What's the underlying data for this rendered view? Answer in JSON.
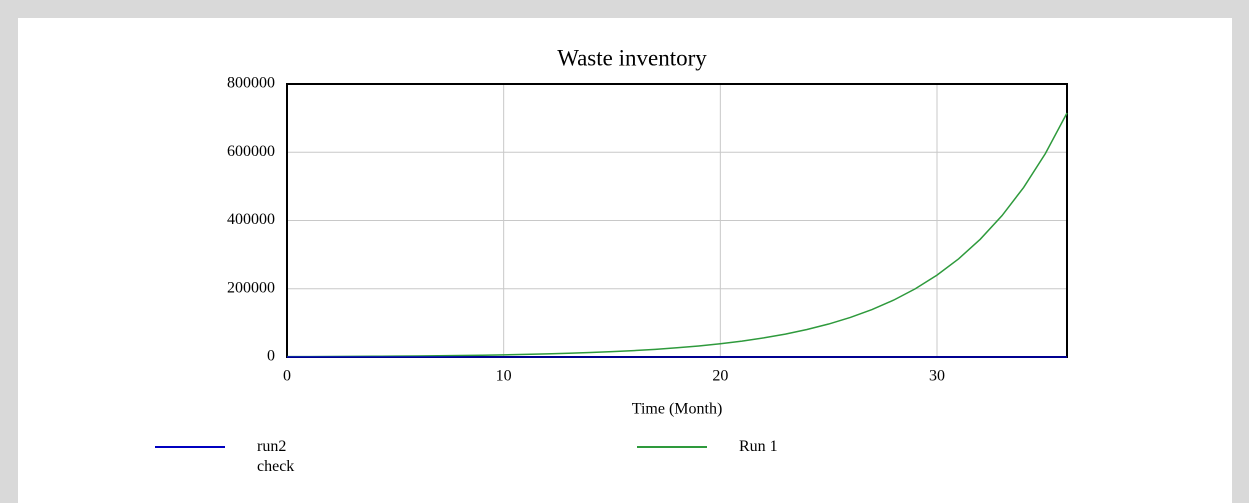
{
  "chart_data": {
    "type": "line",
    "title": "Waste inventory",
    "x_label": "Time (Month)",
    "x": [
      0,
      1,
      2,
      3,
      4,
      5,
      6,
      7,
      8,
      9,
      10,
      11,
      12,
      13,
      14,
      15,
      16,
      17,
      18,
      19,
      20,
      21,
      22,
      23,
      24,
      25,
      26,
      27,
      28,
      29,
      30,
      31,
      32,
      33,
      34,
      35,
      36
    ],
    "series": [
      {
        "name": "run2 check",
        "color": "#0000c0",
        "values": [
          0,
          0,
          0,
          0,
          0,
          0,
          0,
          0,
          0,
          0,
          0,
          0,
          0,
          0,
          0,
          0,
          0,
          0,
          0,
          0,
          0,
          0,
          0,
          0,
          0,
          0,
          0,
          0,
          0,
          0,
          0,
          0,
          0,
          0,
          0,
          0,
          0
        ]
      },
      {
        "name": "Run 1",
        "color": "#2e9a3c",
        "values": [
          1040,
          1250,
          1500,
          1800,
          2100,
          2600,
          3100,
          3700,
          4400,
          5300,
          6300,
          7600,
          9100,
          10900,
          13100,
          15700,
          18800,
          22500,
          27000,
          32400,
          38900,
          46600,
          55900,
          67100,
          80500,
          96600,
          115900,
          139000,
          166700,
          200000,
          239900,
          287800,
          345300,
          414200,
          496900,
          596000,
          715000
        ]
      }
    ],
    "xlim": [
      0,
      36
    ],
    "xticks": [
      0,
      10,
      20,
      30
    ],
    "ylim": [
      0,
      800000
    ],
    "yticks": [
      0,
      200000,
      400000,
      600000,
      800000
    ],
    "grid": true
  }
}
